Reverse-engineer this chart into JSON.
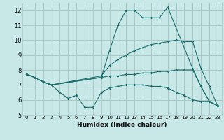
{
  "xlabel": "Humidex (Indice chaleur)",
  "bg_color": "#c8e8e8",
  "grid_color": "#a8c8c8",
  "line_color": "#1a6b6b",
  "xlim": [
    -0.5,
    23.5
  ],
  "ylim": [
    5,
    12.5
  ],
  "yticks": [
    5,
    6,
    7,
    8,
    9,
    10,
    11,
    12
  ],
  "xticks": [
    0,
    1,
    2,
    3,
    4,
    5,
    6,
    7,
    8,
    9,
    10,
    11,
    12,
    13,
    14,
    15,
    16,
    17,
    18,
    19,
    20,
    21,
    22,
    23
  ],
  "lines": [
    {
      "x": [
        0,
        1,
        2,
        3,
        9,
        10,
        11,
        12,
        13,
        14,
        15,
        16,
        17,
        20,
        21,
        22,
        23
      ],
      "y": [
        7.7,
        7.5,
        7.2,
        7.0,
        7.5,
        9.3,
        11.0,
        12.0,
        12.0,
        11.5,
        11.5,
        11.5,
        12.2,
        8.1,
        6.9,
        5.9,
        5.6
      ]
    },
    {
      "x": [
        0,
        1,
        2,
        3,
        9,
        10,
        11,
        12,
        13,
        14,
        15,
        16,
        17,
        18,
        19,
        20,
        21,
        22,
        23
      ],
      "y": [
        7.7,
        7.5,
        7.2,
        7.0,
        7.6,
        8.3,
        8.7,
        9.0,
        9.3,
        9.5,
        9.7,
        9.8,
        9.9,
        10.0,
        9.9,
        9.9,
        8.1,
        6.9,
        5.6
      ]
    },
    {
      "x": [
        0,
        1,
        2,
        3,
        9,
        10,
        11,
        12,
        13,
        14,
        15,
        16,
        17,
        18,
        19,
        20,
        21,
        22,
        23
      ],
      "y": [
        7.7,
        7.5,
        7.2,
        7.0,
        7.5,
        7.6,
        7.6,
        7.7,
        7.7,
        7.8,
        7.8,
        7.9,
        7.9,
        8.0,
        8.0,
        8.0,
        6.9,
        5.9,
        5.6
      ]
    },
    {
      "x": [
        0,
        1,
        2,
        3,
        4,
        5,
        6,
        7,
        8,
        9,
        10,
        11,
        12,
        13,
        14,
        15,
        16,
        17,
        18,
        19,
        20,
        21,
        22,
        23
      ],
      "y": [
        7.7,
        7.5,
        7.2,
        7.0,
        6.5,
        6.1,
        6.3,
        5.5,
        5.5,
        6.5,
        6.8,
        6.9,
        7.0,
        7.0,
        7.0,
        6.9,
        6.9,
        6.8,
        6.5,
        6.3,
        6.0,
        5.9,
        5.9,
        5.6
      ]
    }
  ]
}
